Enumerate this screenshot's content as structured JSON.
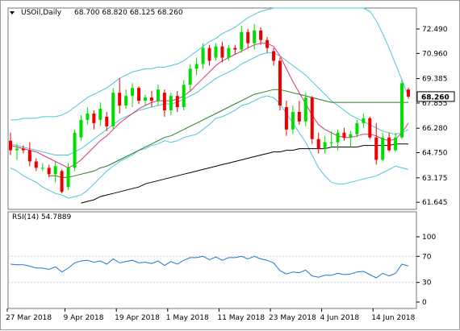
{
  "header": {
    "symbol": "USOil,Daily",
    "ohlc": "68.700 68.820 68.125 68.260"
  },
  "rsi_header": "RSI(14) 54.7889",
  "colors": {
    "bull": "#00dd00",
    "bear": "#ee0000",
    "bb": "#46c8dc",
    "ma_fast": "#e0307a",
    "ma_mid": "#2a7a2a",
    "ma_slow": "#000000",
    "rsi": "#1f77d4",
    "price_tag_bg": "#ffffff"
  },
  "chart_data": [
    {
      "type": "candlestick",
      "title": "USOil,Daily",
      "ylim": [
        61.2,
        73.8
      ],
      "yticks": [
        "72.490",
        "70.960",
        "69.385",
        "67.855",
        "66.280",
        "64.750",
        "63.175",
        "61.645"
      ],
      "ytick_values": [
        72.49,
        70.96,
        69.385,
        67.855,
        66.28,
        64.75,
        63.175,
        61.645
      ],
      "last_price": "68.260",
      "last_price_value": 68.26,
      "xlabels": [
        "27 Mar 2018",
        "9 Apr 2018",
        "19 Apr 2018",
        "1 May 2018",
        "11 May 2018",
        "23 May 2018",
        "4 Jun 2018",
        "14 Jun 2018"
      ],
      "xlabel_index": [
        0,
        9,
        17,
        25,
        33,
        41,
        49,
        57
      ],
      "candles": [
        [
          65.5,
          66.0,
          64.6,
          64.9
        ],
        [
          64.9,
          65.3,
          64.3,
          65.0
        ],
        [
          65.0,
          65.2,
          64.7,
          64.9
        ],
        [
          64.9,
          65.4,
          63.9,
          64.2
        ],
        [
          64.2,
          64.4,
          63.6,
          63.8
        ],
        [
          63.8,
          64.1,
          63.6,
          63.8
        ],
        [
          63.8,
          64.0,
          63.2,
          63.4
        ],
        [
          63.4,
          64.2,
          62.9,
          63.9
        ],
        [
          63.6,
          63.7,
          62.2,
          62.3
        ],
        [
          62.6,
          64.1,
          62.4,
          63.8
        ],
        [
          63.8,
          66.2,
          63.6,
          66.0
        ],
        [
          65.7,
          67.1,
          65.5,
          66.8
        ],
        [
          66.8,
          67.6,
          66.5,
          67.2
        ],
        [
          67.2,
          67.4,
          66.2,
          66.6
        ],
        [
          66.8,
          67.9,
          66.4,
          67.5
        ],
        [
          67.0,
          67.3,
          66.1,
          66.4
        ],
        [
          66.4,
          68.8,
          66.2,
          68.5
        ],
        [
          68.5,
          69.4,
          67.2,
          67.7
        ],
        [
          67.7,
          68.7,
          67.5,
          68.3
        ],
        [
          68.3,
          69.1,
          67.6,
          68.8
        ],
        [
          68.8,
          68.9,
          67.8,
          68.0
        ],
        [
          68.0,
          68.4,
          67.7,
          68.2
        ],
        [
          68.2,
          68.6,
          67.6,
          68.0
        ],
        [
          68.0,
          69.0,
          67.7,
          68.7
        ],
        [
          68.5,
          68.7,
          67.0,
          67.4
        ],
        [
          67.4,
          68.5,
          67.1,
          68.3
        ],
        [
          68.3,
          68.6,
          67.3,
          67.6
        ],
        [
          67.6,
          69.3,
          67.4,
          69.0
        ],
        [
          69.0,
          70.3,
          68.6,
          70.0
        ],
        [
          70.0,
          70.7,
          69.6,
          70.3
        ],
        [
          70.3,
          71.6,
          70.0,
          71.3
        ],
        [
          71.3,
          71.5,
          70.2,
          70.5
        ],
        [
          70.7,
          71.6,
          70.5,
          71.4
        ],
        [
          71.4,
          71.7,
          70.4,
          70.7
        ],
        [
          70.7,
          71.5,
          70.5,
          71.3
        ],
        [
          71.3,
          71.5,
          70.9,
          71.2
        ],
        [
          71.2,
          72.7,
          71.0,
          72.3
        ],
        [
          72.3,
          72.5,
          71.3,
          71.6
        ],
        [
          71.6,
          72.8,
          71.2,
          72.4
        ],
        [
          72.4,
          72.6,
          71.5,
          71.8
        ],
        [
          71.8,
          72.0,
          71.0,
          71.3
        ],
        [
          71.1,
          71.3,
          70.2,
          70.5
        ],
        [
          70.5,
          70.7,
          67.4,
          67.7
        ],
        [
          67.6,
          68.0,
          65.8,
          66.2
        ],
        [
          66.2,
          67.7,
          65.9,
          67.3
        ],
        [
          67.3,
          68.0,
          66.5,
          66.7
        ],
        [
          66.7,
          68.5,
          66.4,
          68.2
        ],
        [
          68.2,
          68.3,
          65.3,
          65.6
        ],
        [
          65.6,
          66.0,
          64.7,
          65.0
        ],
        [
          65.0,
          65.8,
          64.7,
          65.4
        ],
        [
          65.4,
          66.1,
          65.1,
          65.4
        ],
        [
          65.4,
          66.2,
          64.9,
          66.0
        ],
        [
          66.0,
          66.3,
          65.5,
          65.7
        ],
        [
          65.7,
          66.1,
          65.1,
          65.9
        ],
        [
          65.9,
          66.8,
          65.7,
          66.6
        ],
        [
          66.6,
          67.2,
          66.3,
          66.9
        ],
        [
          66.9,
          67.0,
          65.6,
          65.7
        ],
        [
          65.7,
          66.6,
          64.0,
          64.3
        ],
        [
          64.3,
          66.0,
          64.2,
          65.7
        ],
        [
          65.7,
          66.0,
          64.8,
          64.9
        ],
        [
          64.9,
          66.0,
          64.8,
          65.7
        ],
        [
          65.7,
          69.3,
          65.6,
          69.1
        ],
        [
          68.7,
          68.82,
          68.125,
          68.26
        ]
      ],
      "series": [
        {
          "role": "bb-upper",
          "values": [
            66.8,
            66.8,
            66.9,
            66.9,
            66.9,
            67.0,
            67.0,
            67.0,
            67.1,
            67.3,
            67.6,
            67.9,
            68.2,
            68.4,
            68.6,
            68.8,
            69.1,
            69.4,
            69.6,
            69.8,
            69.9,
            70.0,
            70.0,
            70.1,
            70.1,
            70.2,
            70.3,
            70.5,
            70.8,
            71.1,
            71.4,
            71.7,
            71.9,
            72.2,
            72.4,
            72.6,
            72.9,
            73.2,
            73.4,
            73.6,
            73.7,
            73.8,
            73.8,
            73.8,
            73.8,
            73.8,
            73.8,
            73.8,
            73.8,
            73.8,
            73.8,
            73.8,
            73.8,
            73.8,
            73.8,
            73.8,
            73.6,
            73.0,
            72.2,
            71.3,
            70.3,
            69.3,
            68.3
          ]
        },
        {
          "role": "bb-mid",
          "values": [
            65.3,
            65.2,
            65.1,
            65.0,
            64.9,
            64.8,
            64.7,
            64.6,
            64.6,
            64.6,
            64.8,
            65.0,
            65.3,
            65.6,
            65.9,
            66.2,
            66.5,
            66.8,
            67.0,
            67.2,
            67.4,
            67.5,
            67.6,
            67.7,
            67.8,
            67.8,
            67.9,
            68.1,
            68.3,
            68.5,
            68.8,
            69.1,
            69.4,
            69.6,
            69.8,
            70.0,
            70.3,
            70.5,
            70.7,
            70.9,
            71.0,
            71.0,
            70.8,
            70.5,
            70.2,
            69.9,
            69.6,
            69.2,
            68.8,
            68.4,
            68.0,
            67.7,
            67.4,
            67.1,
            66.9,
            66.7,
            66.5,
            66.3,
            66.1,
            66.0,
            65.9,
            66.0,
            66.2
          ]
        },
        {
          "role": "bb-lower",
          "values": [
            63.8,
            63.6,
            63.3,
            63.1,
            62.9,
            62.6,
            62.4,
            62.2,
            62.1,
            61.9,
            62.0,
            62.1,
            62.4,
            62.8,
            63.2,
            63.6,
            63.9,
            64.2,
            64.4,
            64.6,
            64.9,
            65.0,
            65.2,
            65.3,
            65.5,
            65.4,
            65.5,
            65.7,
            65.8,
            65.9,
            66.2,
            66.5,
            66.9,
            67.0,
            67.2,
            67.4,
            67.7,
            67.8,
            68.0,
            68.2,
            68.3,
            68.2,
            67.8,
            67.2,
            66.6,
            66.0,
            65.4,
            64.6,
            63.8,
            63.3,
            62.9,
            62.8,
            62.8,
            62.9,
            63.0,
            63.1,
            63.2,
            63.3,
            63.5,
            63.7,
            63.9,
            63.8,
            63.7
          ]
        },
        {
          "role": "ma-fast",
          "values": [
            65.2,
            65.1,
            65.0,
            64.9,
            64.8,
            64.6,
            64.4,
            64.2,
            64.0,
            63.8,
            64.0,
            64.3,
            64.7,
            65.1,
            65.5,
            65.8,
            66.2,
            66.6,
            66.9,
            67.2,
            67.5,
            67.7,
            67.9,
            68.0,
            68.0,
            68.0,
            68.1,
            68.3,
            68.6,
            69.0,
            69.4,
            69.8,
            70.2,
            70.5,
            70.7,
            70.9,
            71.1,
            71.3,
            71.5,
            71.6,
            71.6,
            71.4,
            70.8,
            70.0,
            69.2,
            68.5,
            67.8,
            67.1,
            66.5,
            66.2,
            66.0,
            65.8,
            65.7,
            65.7,
            65.8,
            65.9,
            65.9,
            65.8,
            65.6,
            65.5,
            65.6,
            66.0,
            66.6
          ]
        },
        {
          "role": "ma-mid",
          "values": [
            null,
            null,
            null,
            null,
            null,
            null,
            63.3,
            63.3,
            63.2,
            63.2,
            63.3,
            63.4,
            63.5,
            63.6,
            63.8,
            63.9,
            64.1,
            64.3,
            64.5,
            64.7,
            64.9,
            65.1,
            65.3,
            65.5,
            65.7,
            65.8,
            66.0,
            66.2,
            66.4,
            66.6,
            66.8,
            67.0,
            67.2,
            67.4,
            67.6,
            67.8,
            68.0,
            68.2,
            68.4,
            68.5,
            68.6,
            68.7,
            68.7,
            68.6,
            68.5,
            68.4,
            68.3,
            68.2,
            68.1,
            68.0,
            67.9,
            67.9,
            67.9,
            67.9,
            67.9,
            67.9,
            67.9,
            67.9,
            67.9,
            67.9,
            67.9,
            67.9,
            67.9
          ]
        },
        {
          "role": "ma-slow",
          "values": [
            null,
            null,
            null,
            null,
            null,
            null,
            null,
            null,
            null,
            null,
            null,
            61.6,
            61.7,
            61.8,
            62.0,
            62.1,
            62.2,
            62.3,
            62.4,
            62.5,
            62.6,
            62.8,
            62.9,
            63.0,
            63.1,
            63.2,
            63.3,
            63.4,
            63.5,
            63.6,
            63.7,
            63.8,
            63.9,
            64.0,
            64.1,
            64.2,
            64.3,
            64.4,
            64.5,
            64.6,
            64.7,
            64.8,
            64.8,
            64.9,
            64.9,
            65.0,
            65.0,
            65.0,
            65.0,
            65.0,
            65.1,
            65.1,
            65.1,
            65.1,
            65.1,
            65.2,
            65.2,
            65.2,
            65.2,
            65.2,
            65.3,
            65.3,
            65.3
          ]
        }
      ]
    },
    {
      "type": "line",
      "title": "RSI(14) 54.7889",
      "ylim": [
        0,
        100
      ],
      "yticks": [
        "100",
        "70",
        "30",
        "0"
      ],
      "ytick_values": [
        100,
        70,
        30,
        0
      ],
      "series": [
        {
          "role": "rsi",
          "values": [
            58,
            57,
            57,
            55,
            52,
            52,
            50,
            54,
            46,
            52,
            60,
            63,
            64,
            61,
            63,
            58,
            66,
            60,
            62,
            64,
            60,
            61,
            59,
            63,
            56,
            62,
            58,
            64,
            68,
            68,
            70,
            65,
            69,
            64,
            68,
            68,
            70,
            66,
            70,
            66,
            64,
            60,
            48,
            43,
            46,
            45,
            49,
            40,
            38,
            41,
            41,
            44,
            42,
            43,
            46,
            47,
            42,
            37,
            44,
            40,
            44,
            58,
            55
          ]
        }
      ]
    }
  ]
}
